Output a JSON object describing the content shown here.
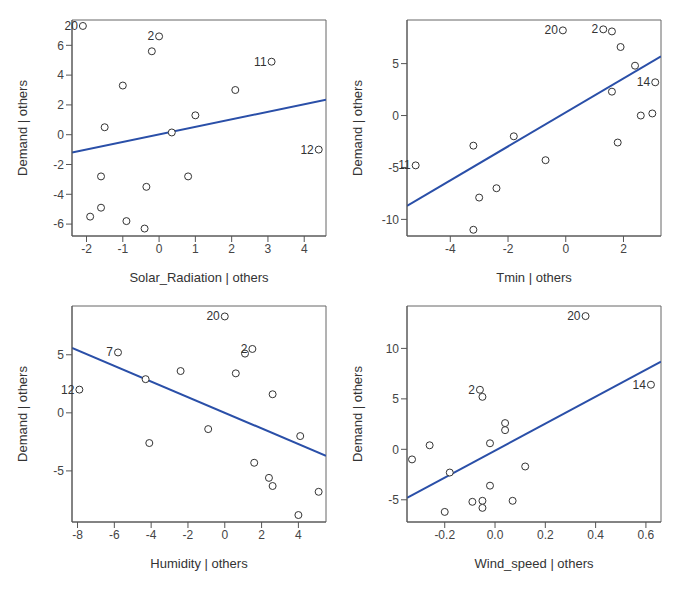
{
  "chart_data": [
    {
      "type": "scatter",
      "x_label": "Solar_Radiation | others",
      "y_label": "Demand | others",
      "x": [
        -2.1,
        0.0,
        -0.2,
        3.1,
        -1.0,
        2.1,
        1.0,
        -1.5,
        0.35,
        4.4,
        -1.6,
        0.8,
        -0.35,
        -1.6,
        -1.9,
        -0.9,
        -0.4
      ],
      "values": [
        7.3,
        6.6,
        5.6,
        4.9,
        3.3,
        3.0,
        1.3,
        0.5,
        0.15,
        -1.0,
        -2.8,
        -2.8,
        -3.5,
        -4.9,
        -5.5,
        -5.8,
        -6.3
      ],
      "point_labels": [
        "20",
        "2",
        null,
        "11",
        null,
        null,
        null,
        null,
        null,
        "12",
        null,
        null,
        null,
        null,
        null,
        null,
        null
      ],
      "xlim": [
        -2.4,
        4.6
      ],
      "ylim": [
        -6.8,
        7.7
      ],
      "xticks": [
        -2,
        -1,
        0,
        1,
        2,
        3,
        4
      ],
      "yticks": [
        -6,
        -4,
        -2,
        0,
        2,
        4,
        6
      ],
      "fit_line": {
        "x": [
          -2.4,
          4.6
        ],
        "y": [
          -1.2,
          2.35
        ]
      },
      "color": "#2a4fa8",
      "marker": "open_circle"
    },
    {
      "type": "scatter",
      "x_label": "Tmin | others",
      "y_label": "Demand | others",
      "x": [
        -5.2,
        -3.2,
        -3.0,
        -3.2,
        -2.4,
        -1.8,
        -0.7,
        -0.1,
        1.3,
        1.6,
        1.9,
        1.6,
        1.8,
        2.4,
        3.1,
        2.6,
        3.0
      ],
      "values": [
        -4.8,
        -2.9,
        -7.9,
        -11.0,
        -7.0,
        -2.0,
        -4.3,
        8.2,
        8.3,
        8.1,
        6.6,
        2.3,
        -2.6,
        4.8,
        3.2,
        0.0,
        0.2
      ],
      "point_labels": [
        "11",
        null,
        null,
        null,
        null,
        null,
        null,
        "20",
        "2",
        null,
        null,
        null,
        null,
        null,
        "14",
        null,
        null
      ],
      "xlim": [
        -5.5,
        3.3
      ],
      "ylim": [
        -11.6,
        9.2
      ],
      "xticks": [
        -4,
        -2,
        0,
        2
      ],
      "yticks": [
        -10,
        -5,
        0,
        5
      ],
      "fit_line": {
        "x": [
          -5.5,
          3.3
        ],
        "y": [
          -8.7,
          5.7
        ]
      },
      "color": "#2a4fa8",
      "marker": "open_circle"
    },
    {
      "type": "scatter",
      "x_label": "Humidity | others",
      "y_label": "Demand | others",
      "x": [
        -7.9,
        -5.8,
        -4.3,
        -4.1,
        -2.4,
        -0.9,
        0.0,
        0.6,
        1.1,
        1.5,
        1.6,
        2.4,
        2.6,
        2.6,
        4.1,
        4.0,
        5.1
      ],
      "values": [
        2.0,
        5.2,
        2.9,
        -2.6,
        3.6,
        -1.4,
        8.3,
        3.4,
        5.1,
        5.5,
        -4.3,
        -5.6,
        -6.3,
        1.6,
        -2.0,
        -8.8,
        -6.8
      ],
      "point_labels": [
        "12",
        "7",
        null,
        null,
        null,
        null,
        "20",
        null,
        null,
        "2",
        null,
        null,
        null,
        null,
        null,
        null,
        null
      ],
      "xlim": [
        -8.3,
        5.5
      ],
      "ylim": [
        -9.4,
        9.2
      ],
      "xticks": [
        -8,
        -6,
        -4,
        -2,
        0,
        2,
        4
      ],
      "yticks": [
        -5,
        0,
        5
      ],
      "fit_line": {
        "x": [
          -8.3,
          5.5
        ],
        "y": [
          5.6,
          -3.7
        ]
      },
      "color": "#2a4fa8",
      "marker": "open_circle"
    },
    {
      "type": "scatter",
      "x_label": "Wind_speed | others",
      "y_label": "Demand | others",
      "x": [
        0.36,
        0.62,
        -0.06,
        -0.05,
        0.04,
        0.04,
        -0.02,
        -0.26,
        -0.33,
        0.12,
        -0.18,
        -0.02,
        -0.09,
        -0.05,
        0.07,
        -0.05,
        -0.2
      ],
      "values": [
        13.2,
        6.4,
        5.9,
        5.2,
        2.6,
        1.9,
        0.6,
        0.4,
        -1.0,
        -1.7,
        -2.3,
        -3.6,
        -5.2,
        -5.1,
        -5.1,
        -5.8,
        -6.2
      ],
      "point_labels": [
        "20",
        "14",
        "2",
        null,
        null,
        null,
        null,
        null,
        null,
        null,
        null,
        null,
        null,
        null,
        null,
        null,
        null
      ],
      "xlim": [
        -0.35,
        0.66
      ],
      "ylim": [
        -7.2,
        14.2
      ],
      "xticks": [
        -0.2,
        {
          "value": 0,
          "label": "0.0"
        },
        0.2,
        0.4,
        0.6
      ],
      "yticks": [
        -5,
        0,
        5,
        10
      ],
      "fit_line": {
        "x": [
          -0.35,
          0.66
        ],
        "y": [
          -4.8,
          8.7
        ]
      },
      "color": "#2a4fa8",
      "marker": "open_circle"
    }
  ]
}
